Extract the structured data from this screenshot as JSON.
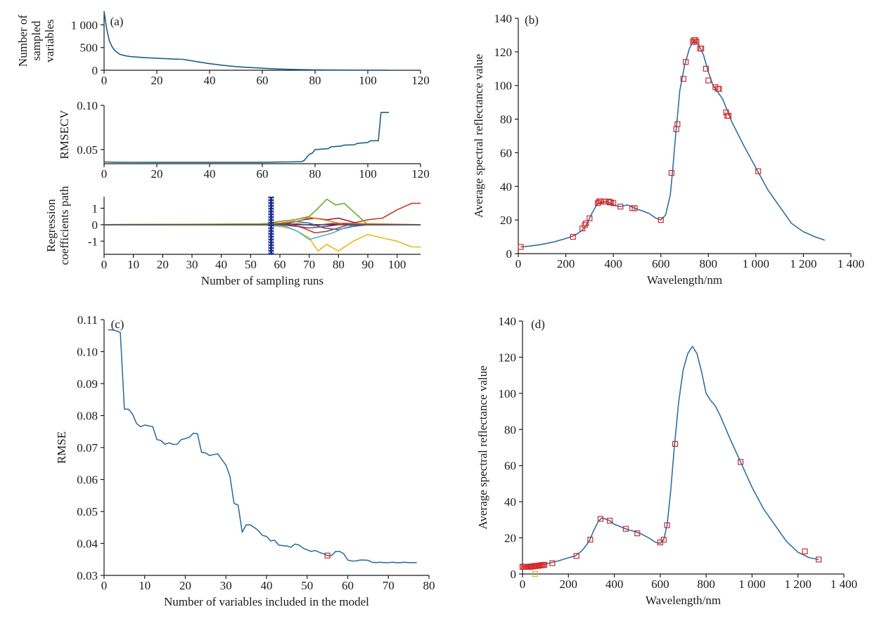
{
  "chart_data": [
    {
      "id": "a1",
      "type": "line",
      "panel_label": "(a)",
      "ylabel_lines": [
        "Number of",
        "sampled",
        "variables"
      ],
      "xlim": [
        0,
        120
      ],
      "ylim": [
        0,
        1300
      ],
      "xticks": [
        0,
        20,
        40,
        60,
        80,
        100,
        120
      ],
      "xtick_labels": [
        "0",
        "20",
        "40",
        "60",
        "80",
        "100",
        "120"
      ],
      "yticks": [
        0,
        500,
        1000
      ],
      "ytick_labels": [
        "0",
        "500",
        "1 000"
      ],
      "series": [
        {
          "color": "#1f5f8b",
          "x": [
            0,
            1,
            2,
            3,
            4,
            5,
            6,
            8,
            10,
            15,
            20,
            25,
            30,
            35,
            40,
            45,
            50,
            55,
            60,
            65,
            70,
            80,
            90,
            100,
            108
          ],
          "y": [
            1300,
            900,
            650,
            520,
            440,
            390,
            350,
            320,
            300,
            280,
            265,
            250,
            240,
            190,
            145,
            110,
            80,
            60,
            45,
            30,
            20,
            10,
            5,
            3,
            2
          ]
        }
      ]
    },
    {
      "id": "a2",
      "type": "line",
      "ylabel": "RMSECV",
      "xlim": [
        0,
        120
      ],
      "ylim": [
        0.034,
        0.1
      ],
      "xticks": [
        0,
        20,
        40,
        60,
        80,
        100,
        120
      ],
      "xtick_labels": [
        "0",
        "20",
        "40",
        "60",
        "80",
        "100",
        "120"
      ],
      "yticks": [
        0.05,
        0.1
      ],
      "ytick_labels": [
        "0.05",
        "0.10"
      ],
      "series": [
        {
          "color": "#1f5f8b",
          "x": [
            0,
            5,
            10,
            20,
            30,
            40,
            50,
            60,
            62,
            65,
            70,
            75,
            76,
            77,
            78,
            79,
            80,
            85,
            86,
            90,
            91,
            95,
            96,
            100,
            101,
            104,
            105,
            108
          ],
          "y": [
            0.036,
            0.0357,
            0.0356,
            0.0355,
            0.0355,
            0.0355,
            0.0355,
            0.0355,
            0.0357,
            0.0358,
            0.036,
            0.0363,
            0.038,
            0.042,
            0.045,
            0.046,
            0.05,
            0.051,
            0.053,
            0.054,
            0.055,
            0.0555,
            0.057,
            0.058,
            0.06,
            0.06,
            0.092,
            0.092
          ]
        }
      ]
    },
    {
      "id": "a3",
      "type": "line",
      "ylabel_lines": [
        "Regression",
        "coefficients path"
      ],
      "xlabel": "Number of sampling runs",
      "xlim": [
        0,
        108
      ],
      "ylim": [
        -1.8,
        1.7
      ],
      "xticks": [
        0,
        10,
        20,
        30,
        40,
        50,
        60,
        70,
        80,
        90,
        100
      ],
      "xtick_labels": [
        "0",
        "10",
        "20",
        "30",
        "40",
        "50",
        "60",
        "70",
        "80",
        "90",
        "100"
      ],
      "yticks": [
        -1,
        0,
        1
      ],
      "ytick_labels": [
        "-1",
        "0",
        "1"
      ],
      "marker_line_x": 57,
      "series": [
        {
          "color": "#2b63a8",
          "x": [
            0,
            50,
            60,
            65,
            70,
            75,
            80,
            85,
            90,
            100,
            108
          ],
          "y": [
            0,
            0.02,
            0.1,
            0.2,
            0.1,
            -0.2,
            -0.3,
            -0.1,
            0,
            0,
            0
          ]
        },
        {
          "color": "#c23b22",
          "x": [
            0,
            55,
            62,
            68,
            72,
            76,
            80,
            85,
            90,
            95,
            100,
            105,
            108
          ],
          "y": [
            0,
            0.03,
            0.1,
            -0.2,
            -0.5,
            -0.4,
            -0.2,
            0.1,
            0.3,
            0.4,
            0.9,
            1.3,
            1.3
          ]
        },
        {
          "color": "#e8b71a",
          "x": [
            0,
            55,
            60,
            65,
            70,
            73,
            76,
            80,
            85,
            90,
            95,
            100,
            105,
            108
          ],
          "y": [
            0,
            -0.02,
            -0.1,
            -0.3,
            -0.8,
            -1.6,
            -1.2,
            -1.6,
            -1.0,
            -0.6,
            -0.8,
            -1.0,
            -1.35,
            -1.35
          ]
        },
        {
          "color": "#6aaa2e",
          "x": [
            0,
            55,
            60,
            65,
            70,
            73,
            76,
            79,
            82,
            85,
            90,
            108
          ],
          "y": [
            0,
            0.05,
            0.2,
            0.3,
            0.5,
            1.0,
            1.55,
            1.2,
            1.3,
            0.8,
            0,
            0
          ]
        },
        {
          "color": "#8b1e3f",
          "x": [
            0,
            55,
            62,
            68,
            72,
            76,
            80,
            84,
            88,
            108
          ],
          "y": [
            0,
            0,
            0.05,
            0.3,
            0.4,
            0.3,
            0.4,
            0.2,
            0,
            0
          ]
        },
        {
          "color": "#4fb3d9",
          "x": [
            0,
            55,
            62,
            66,
            70,
            74,
            78,
            82,
            86,
            108
          ],
          "y": [
            0,
            0,
            -0.1,
            -0.4,
            -0.9,
            -0.7,
            -0.5,
            -0.2,
            0,
            0
          ]
        },
        {
          "color": "#e87722",
          "x": [
            0,
            55,
            60,
            66,
            70,
            75,
            80,
            108
          ],
          "y": [
            0,
            0.02,
            0.1,
            0.2,
            0.45,
            0.3,
            0.1,
            0
          ]
        },
        {
          "color": "#7a3b8f",
          "x": [
            0,
            60,
            66,
            70,
            76,
            82,
            88,
            108
          ],
          "y": [
            0,
            0,
            -0.1,
            -0.2,
            -0.1,
            0.05,
            0,
            0
          ]
        },
        {
          "color": "#555555",
          "x": [
            0,
            60,
            66,
            72,
            78,
            84,
            90,
            108
          ],
          "y": [
            0,
            0,
            0.05,
            -0.05,
            0.08,
            -0.03,
            0,
            0
          ]
        }
      ]
    },
    {
      "id": "b",
      "type": "line",
      "panel_label": "(b)",
      "xlabel": "Wavelength/nm",
      "ylabel": "Average spectral reflectance value",
      "xlim": [
        0,
        1400
      ],
      "ylim": [
        0,
        140
      ],
      "xticks": [
        0,
        200,
        400,
        600,
        800,
        1000,
        1200,
        1400
      ],
      "xtick_labels": [
        "0",
        "200",
        "400",
        "600",
        "800",
        "1 000",
        "1 200",
        "1 400"
      ],
      "yticks": [
        0,
        20,
        40,
        60,
        80,
        100,
        120,
        140
      ],
      "ytick_labels": [
        "0",
        "20",
        "40",
        "60",
        "80",
        "100",
        "120",
        "140"
      ],
      "series": [
        {
          "color": "#2f6fa6",
          "x": [
            10,
            50,
            100,
            150,
            200,
            240,
            270,
            290,
            310,
            330,
            350,
            370,
            390,
            410,
            430,
            460,
            490,
            520,
            550,
            580,
            600,
            620,
            640,
            650,
            660,
            670,
            680,
            700,
            720,
            740,
            760,
            780,
            800,
            820,
            840,
            860,
            880,
            900,
            950,
            1000,
            1050,
            1100,
            1150,
            1200,
            1250,
            1290
          ],
          "y": [
            4,
            4.5,
            5.5,
            7,
            9,
            11,
            14,
            18,
            24,
            29,
            30.5,
            31,
            30,
            28.5,
            28,
            29,
            27,
            25.5,
            24,
            21,
            20,
            23,
            35,
            50,
            67,
            82,
            97,
            112,
            122,
            127,
            124,
            118,
            108,
            100,
            96,
            92,
            85,
            78,
            64,
            51,
            38,
            28,
            18,
            13,
            10,
            8
          ]
        }
      ],
      "markers": {
        "color": "#d12a2a",
        "x": [
          10,
          230,
          270,
          280,
          285,
          300,
          335,
          340,
          345,
          350,
          360,
          380,
          385,
          390,
          400,
          430,
          480,
          490,
          600,
          645,
          665,
          670,
          695,
          705,
          735,
          740,
          745,
          750,
          765,
          770,
          790,
          800,
          830,
          840,
          845,
          875,
          880,
          885,
          1010
        ],
        "y": [
          4,
          10,
          15,
          17,
          18,
          21,
          30,
          31,
          31,
          31,
          31,
          31,
          30.5,
          30.5,
          30,
          28,
          27,
          27,
          20,
          48,
          74,
          77,
          104,
          114,
          126,
          127,
          127,
          126,
          122,
          122,
          110,
          103,
          99,
          98,
          98,
          84,
          82,
          82,
          49
        ]
      }
    },
    {
      "id": "c",
      "type": "line",
      "panel_label": "(c)",
      "xlabel": "Number of variables included in the model",
      "ylabel": "RMSE",
      "xlim": [
        0,
        80
      ],
      "ylim": [
        0.03,
        0.11
      ],
      "xticks": [
        0,
        10,
        20,
        30,
        40,
        50,
        60,
        70,
        80
      ],
      "xtick_labels": [
        "0",
        "10",
        "20",
        "30",
        "40",
        "50",
        "60",
        "70",
        "80"
      ],
      "yticks": [
        0.03,
        0.04,
        0.05,
        0.06,
        0.07,
        0.08,
        0.09,
        0.1,
        0.11
      ],
      "ytick_labels": [
        "0.03",
        "0.04",
        "0.05",
        "0.06",
        "0.07",
        "0.08",
        "0.09",
        "0.10",
        "0.11"
      ],
      "series": [
        {
          "color": "#2f6fa6",
          "x": [
            1,
            2,
            3,
            4,
            5,
            6,
            7,
            8,
            9,
            10,
            11,
            12,
            13,
            14,
            15,
            16,
            17,
            18,
            19,
            20,
            21,
            22,
            23,
            24,
            25,
            26,
            27,
            28,
            29,
            30,
            31,
            32,
            33,
            34,
            35,
            36,
            37,
            38,
            39,
            40,
            41,
            42,
            43,
            44,
            45,
            46,
            47,
            48,
            49,
            50,
            51,
            52,
            53,
            54,
            55,
            56,
            57,
            58,
            59,
            60,
            61,
            62,
            63,
            64,
            65,
            66,
            67,
            68,
            69,
            70,
            71,
            72,
            73,
            74,
            75,
            76,
            77
          ],
          "y": [
            0.1068,
            0.1068,
            0.1065,
            0.106,
            0.082,
            0.082,
            0.0805,
            0.0775,
            0.0765,
            0.077,
            0.0768,
            0.0765,
            0.0725,
            0.0722,
            0.071,
            0.0715,
            0.071,
            0.071,
            0.0725,
            0.0728,
            0.0732,
            0.0745,
            0.0743,
            0.0685,
            0.0683,
            0.0675,
            0.0678,
            0.068,
            0.0662,
            0.0645,
            0.061,
            0.0525,
            0.052,
            0.0435,
            0.0458,
            0.0458,
            0.045,
            0.044,
            0.0425,
            0.0422,
            0.0408,
            0.041,
            0.0395,
            0.0393,
            0.0392,
            0.0388,
            0.0398,
            0.0395,
            0.0385,
            0.038,
            0.0375,
            0.0378,
            0.0372,
            0.0368,
            0.0362,
            0.0362,
            0.0375,
            0.0375,
            0.0368,
            0.0348,
            0.0345,
            0.0345,
            0.0348,
            0.0348,
            0.0347,
            0.0341,
            0.034,
            0.0341,
            0.034,
            0.034,
            0.0341,
            0.034,
            0.034,
            0.0341,
            0.034,
            0.034,
            0.034
          ]
        }
      ],
      "markers": {
        "color": "#d12a2a",
        "x": [
          55
        ],
        "y": [
          0.0362
        ]
      }
    },
    {
      "id": "d",
      "type": "line",
      "panel_label": "(d)",
      "xlabel": "Wavelength/nm",
      "ylabel": "Average spectral reflectance value",
      "xlim": [
        0,
        1400
      ],
      "ylim": [
        0,
        140
      ],
      "xticks": [
        0,
        200,
        400,
        600,
        800,
        1000,
        1200,
        1400
      ],
      "xtick_labels": [
        "0",
        "200",
        "400",
        "600",
        "800",
        "1 000",
        "1 200",
        "1 400"
      ],
      "yticks": [
        0,
        20,
        40,
        60,
        80,
        100,
        120,
        140
      ],
      "ytick_labels": [
        "0",
        "20",
        "40",
        "60",
        "80",
        "100",
        "120",
        "140"
      ],
      "series": [
        {
          "color": "#2f6fa6",
          "x": [
            0,
            50,
            100,
            150,
            200,
            230,
            260,
            290,
            310,
            330,
            345,
            360,
            380,
            400,
            430,
            460,
            490,
            520,
            550,
            580,
            600,
            615,
            630,
            645,
            660,
            680,
            700,
            720,
            740,
            760,
            780,
            800,
            820,
            840,
            860,
            880,
            900,
            950,
            1000,
            1050,
            1100,
            1150,
            1200,
            1250,
            1290
          ],
          "y": [
            4,
            4.5,
            5.5,
            7,
            9,
            10,
            13,
            18,
            24,
            29,
            31,
            30.5,
            29.5,
            27.5,
            26,
            24.5,
            23.5,
            22,
            20,
            17.5,
            17,
            19,
            27,
            45,
            68,
            95,
            113,
            122,
            126,
            122,
            112,
            100,
            96,
            93,
            88,
            82,
            76,
            62,
            48,
            36,
            27,
            18,
            12,
            9,
            8
          ]
        }
      ],
      "markers": {
        "color": "#d12a2a",
        "x": [
          0,
          5,
          10,
          15,
          20,
          25,
          30,
          35,
          40,
          45,
          50,
          55,
          60,
          65,
          70,
          75,
          80,
          85,
          90,
          95,
          130,
          235,
          295,
          340,
          380,
          450,
          500,
          600,
          615,
          630,
          665,
          950,
          1230,
          1290
        ],
        "y": [
          4,
          4,
          4,
          4,
          4,
          4,
          4,
          4,
          4.2,
          4.2,
          4.3,
          4.4,
          4.5,
          4.5,
          4.6,
          4.7,
          4.8,
          4.9,
          5,
          5.1,
          6,
          10,
          19,
          30.5,
          29.5,
          25,
          22.5,
          17.5,
          19,
          27,
          72,
          62,
          12.5,
          8
        ]
      },
      "extra_marker": {
        "color": "#e8b71a",
        "x": 55,
        "y": 0
      }
    }
  ]
}
